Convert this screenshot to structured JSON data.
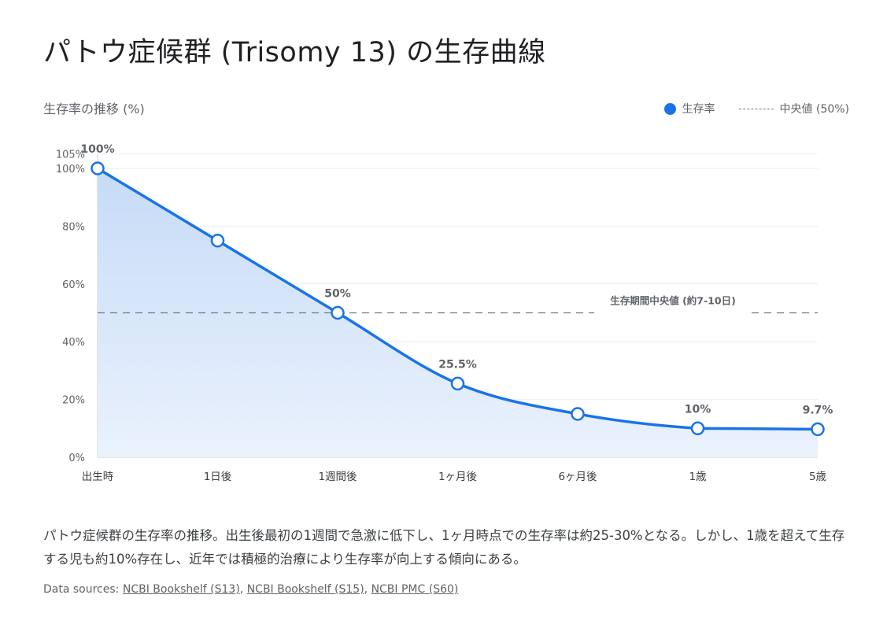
{
  "title": "パトウ症候群 (Trisomy 13) の生存曲線",
  "subtitle": "生存率の推移 (%)",
  "legend": {
    "series": "生存率",
    "median": "中央値 (50%)"
  },
  "colors": {
    "line": "#1a73e8",
    "fill": "#c9dcf6",
    "median": "#777777"
  },
  "chart_data": {
    "type": "line",
    "categories": [
      "出生時",
      "1日後",
      "1週間後",
      "1ヶ月後",
      "6ヶ月後",
      "1歳",
      "5歳"
    ],
    "series": [
      {
        "name": "生存率",
        "values": [
          100,
          75,
          50,
          25.5,
          15,
          10,
          9.7
        ]
      }
    ],
    "data_labels": [
      "100%",
      "",
      "50%",
      "25.5%",
      "",
      "10%",
      "9.7%"
    ],
    "ylim": [
      0,
      105
    ],
    "yticks": [
      0,
      20,
      40,
      60,
      80,
      100,
      105
    ],
    "ytick_labels": [
      "0%",
      "20%",
      "40%",
      "60%",
      "80%",
      "100%",
      "105%"
    ],
    "reference_line": {
      "value": 50,
      "label": "生存期間中央値 (約7-10日)",
      "style": "dashed"
    },
    "area_fill": true,
    "grid": true,
    "legend_position": "top-right"
  },
  "description": "パトウ症候群の生存率の推移。出生後最初の1週間で急激に低下し、1ヶ月時点での生存率は約25-30%となる。しかし、1歳を超えて生存する児も約10%存在し、近年では積極的治療により生存率が向上する傾向にある。",
  "sources": {
    "prefix": "Data sources: ",
    "links": [
      "NCBI Bookshelf (S13)",
      "NCBI Bookshelf (S15)",
      "NCBI PMC (S60)"
    ]
  }
}
